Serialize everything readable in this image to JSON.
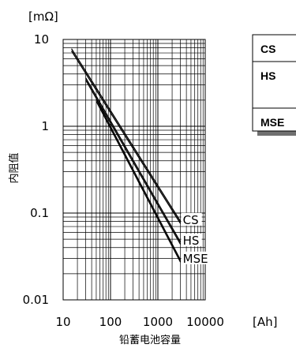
{
  "chart_data": {
    "type": "line",
    "title": "",
    "ylabel": "内阻值",
    "xlabel": "铅蓄电池容量",
    "y_unit": "[mΩ]",
    "x_unit": "[Ah]",
    "x_scale": "log",
    "y_scale": "log",
    "xlim": [
      10,
      10000
    ],
    "ylim": [
      0.01,
      10
    ],
    "grid": true,
    "x_ticks": [
      "10",
      "100",
      "1000",
      "10000"
    ],
    "y_ticks": [
      "10",
      "1",
      "0.1",
      "0.01"
    ],
    "series": [
      {
        "name": "CS",
        "x": [
          15,
          3000
        ],
        "y": [
          7.6,
          0.078
        ]
      },
      {
        "name": "HS",
        "x": [
          30,
          3000
        ],
        "y": [
          3.5,
          0.045
        ]
      },
      {
        "name": "MSE",
        "x": [
          50,
          3000
        ],
        "y": [
          2.0,
          0.028
        ]
      }
    ],
    "legend": {
      "placement": "right",
      "entries": [
        "CS",
        "HS",
        "MSE"
      ]
    }
  }
}
